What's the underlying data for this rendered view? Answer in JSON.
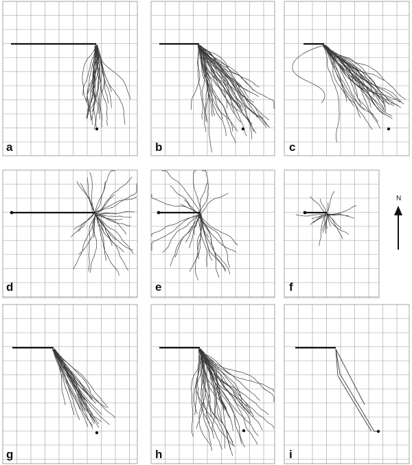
{
  "colors": {
    "grid": "#9a9a9a",
    "track": "#3a3a3a",
    "ink": "#111111",
    "background": "#ffffff"
  },
  "compass": {
    "label": "N",
    "icon": "north-arrow-icon"
  },
  "panels": [
    {
      "letter": "a",
      "release_line": true,
      "release_dot": false,
      "target_dot": true,
      "spread": "narrow",
      "direction": "south",
      "track_count": 26
    },
    {
      "letter": "b",
      "release_line": true,
      "release_dot": false,
      "target_dot": true,
      "spread": "wide",
      "direction": "south-east",
      "track_count": 40
    },
    {
      "letter": "c",
      "release_line": true,
      "release_dot": false,
      "target_dot": true,
      "spread": "medium",
      "direction": "south-east",
      "track_count": 34
    },
    {
      "letter": "d",
      "release_line": true,
      "release_dot": true,
      "target_dot": false,
      "spread": "radial",
      "direction": "all",
      "track_count": 30
    },
    {
      "letter": "e",
      "release_line": true,
      "release_dot": true,
      "target_dot": false,
      "spread": "radial",
      "direction": "all",
      "track_count": 30
    },
    {
      "letter": "f",
      "release_line": true,
      "release_dot": true,
      "target_dot": false,
      "spread": "radial-small",
      "direction": "all",
      "track_count": 22
    },
    {
      "letter": "g",
      "release_line": true,
      "release_dot": false,
      "target_dot": true,
      "spread": "narrow",
      "direction": "south-east",
      "track_count": 26
    },
    {
      "letter": "h",
      "release_line": true,
      "release_dot": false,
      "target_dot": true,
      "spread": "wide",
      "direction": "south-east",
      "track_count": 40
    },
    {
      "letter": "i",
      "release_line": true,
      "release_dot": false,
      "target_dot": true,
      "spread": "model",
      "direction": "south-east",
      "track_count": 2
    }
  ]
}
